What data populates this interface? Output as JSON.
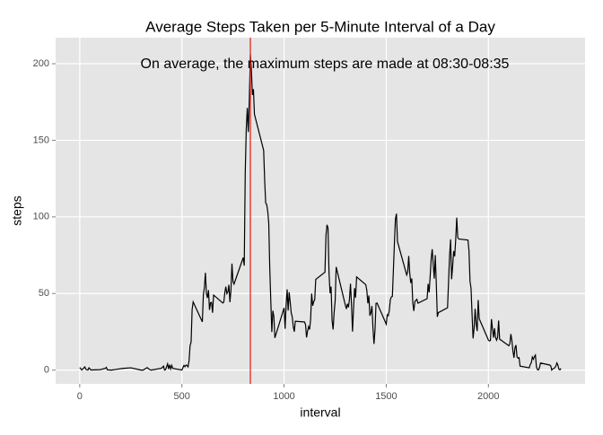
{
  "chart_data": {
    "type": "line",
    "title": "Average Steps Taken per 5-Minute Interval of a Day",
    "annotation": "On average, the maximum steps are made at 08:30-08:35",
    "x_label": "interval",
    "y_label": "steps",
    "color": "#000000",
    "vline": {
      "x": 835,
      "color": "#e8261e"
    },
    "xlim": [
      -118,
      2473
    ],
    "ylim": [
      -9,
      217
    ],
    "xticks": [
      0,
      500,
      1000,
      1500,
      2000
    ],
    "yticks": [
      0,
      50,
      100,
      150,
      200
    ],
    "grid": true,
    "x": [
      0,
      10,
      25,
      30,
      40,
      45,
      55,
      100,
      125,
      130,
      135,
      155,
      210,
      250,
      300,
      310,
      330,
      340,
      350,
      400,
      410,
      415,
      420,
      430,
      435,
      440,
      445,
      450,
      455,
      500,
      505,
      510,
      515,
      520,
      525,
      530,
      535,
      540,
      545,
      550,
      555,
      600,
      605,
      610,
      615,
      620,
      625,
      630,
      635,
      640,
      645,
      650,
      655,
      700,
      705,
      710,
      715,
      720,
      725,
      730,
      735,
      740,
      745,
      750,
      755,
      800,
      805,
      810,
      815,
      820,
      825,
      830,
      835,
      840,
      845,
      850,
      855,
      900,
      905,
      910,
      915,
      920,
      925,
      930,
      935,
      940,
      945,
      950,
      955,
      1000,
      1005,
      1010,
      1015,
      1020,
      1025,
      1030,
      1035,
      1040,
      1045,
      1050,
      1055,
      1100,
      1105,
      1110,
      1115,
      1120,
      1125,
      1130,
      1135,
      1140,
      1145,
      1150,
      1155,
      1200,
      1205,
      1210,
      1215,
      1220,
      1225,
      1230,
      1235,
      1240,
      1245,
      1250,
      1255,
      1300,
      1305,
      1310,
      1315,
      1320,
      1325,
      1330,
      1335,
      1340,
      1345,
      1350,
      1355,
      1400,
      1405,
      1410,
      1415,
      1420,
      1425,
      1430,
      1435,
      1440,
      1445,
      1450,
      1455,
      1500,
      1505,
      1510,
      1515,
      1520,
      1525,
      1530,
      1535,
      1540,
      1545,
      1550,
      1555,
      1600,
      1605,
      1610,
      1615,
      1620,
      1625,
      1630,
      1635,
      1640,
      1645,
      1650,
      1655,
      1700,
      1705,
      1710,
      1715,
      1720,
      1725,
      1730,
      1735,
      1740,
      1745,
      1750,
      1755,
      1800,
      1805,
      1810,
      1815,
      1820,
      1825,
      1830,
      1835,
      1840,
      1845,
      1850,
      1855,
      1900,
      1905,
      1910,
      1915,
      1920,
      1925,
      1930,
      1935,
      1940,
      1945,
      1950,
      1955,
      2000,
      2005,
      2010,
      2015,
      2020,
      2025,
      2030,
      2035,
      2040,
      2045,
      2050,
      2055,
      2100,
      2105,
      2110,
      2115,
      2120,
      2125,
      2130,
      2135,
      2140,
      2145,
      2150,
      2155,
      2200,
      2205,
      2210,
      2215,
      2220,
      2225,
      2230,
      2235,
      2240,
      2245,
      2250,
      2255,
      2300,
      2305,
      2310,
      2315,
      2320,
      2325,
      2330,
      2335,
      2340,
      2345,
      2350,
      2355
    ],
    "values": [
      1.7,
      0.1,
      2.1,
      0.5,
      0,
      1.5,
      0.1,
      0.3,
      1.1,
      1.8,
      0.2,
      0,
      1.1,
      1.5,
      0,
      0,
      1.6,
      0.5,
      0,
      1.2,
      2.6,
      0,
      0.3,
      4.1,
      0.7,
      3.5,
      0.8,
      3.1,
      1.1,
      0,
      1.6,
      3,
      2.2,
      3.3,
      3,
      2.1,
      6.1,
      16,
      18.3,
      39.5,
      44.5,
      31.5,
      49.3,
      53.8,
      63.5,
      50,
      47.1,
      52.2,
      39.3,
      44,
      44.2,
      37.4,
      49,
      43.8,
      44.4,
      50.5,
      54.5,
      49.9,
      51,
      55.7,
      44.3,
      52.3,
      69.5,
      57.8,
      56.2,
      73.4,
      68.2,
      129.4,
      157.5,
      171.2,
      155.4,
      177.3,
      206.2,
      195.9,
      179.6,
      183.4,
      167,
      143.5,
      124,
      109.1,
      108.1,
      103.7,
      95.97,
      66.2,
      45.2,
      24.8,
      38.8,
      34.98,
      21.06,
      40.6,
      26.98,
      42.4,
      52.7,
      38.9,
      50.8,
      44.3,
      37.4,
      34.7,
      28.3,
      25.1,
      31.9,
      31.4,
      29.7,
      21.3,
      25.5,
      28.4,
      26.5,
      33.4,
      49.98,
      42,
      44.6,
      46,
      59.2,
      63.9,
      87.7,
      94.8,
      92.8,
      63.4,
      50.2,
      54.5,
      32.4,
      26.5,
      37.7,
      45.1,
      67.3,
      42.3,
      39.9,
      43.3,
      40.98,
      46.2,
      56.4,
      42.8,
      25.1,
      39.97,
      53.5,
      47.3,
      60.8,
      55.75,
      51.96,
      43.6,
      48.7,
      35.5,
      37.5,
      41.8,
      27.5,
      17.1,
      26.1,
      43.6,
      43.8,
      30,
      36.1,
      35.5,
      38.8,
      45.96,
      47.75,
      48.1,
      65.3,
      82.9,
      98.7,
      102.1,
      83.96,
      62.1,
      64.1,
      74.5,
      63.2,
      56.9,
      59.8,
      43.9,
      38.6,
      44.7,
      45.5,
      46.2,
      43.7,
      46.6,
      56.3,
      50.7,
      61.2,
      72.7,
      78.9,
      68.9,
      59.7,
      75.1,
      56.5,
      34.8,
      37.5,
      40.7,
      58,
      74.7,
      85.3,
      59.3,
      67.8,
      77.7,
      74.2,
      85.3,
      99.5,
      86.6,
      85.6,
      84.9,
      77.8,
      58,
      53.4,
      36.3,
      20.7,
      27.4,
      40,
      30.2,
      25.5,
      45.7,
      33.5,
      19.6,
      19,
      19.3,
      33.3,
      26.8,
      21.2,
      27.3,
      21.3,
      19.5,
      21.3,
      32.3,
      20.2,
      15.9,
      17.2,
      23.5,
      19.2,
      12.5,
      8,
      14.7,
      16.3,
      8.7,
      7.8,
      8.1,
      2.6,
      1.5,
      3.7,
      4.8,
      8.5,
      7.1,
      8.7,
      9.8,
      2.2,
      0.3,
      0.1,
      1.6,
      4.6,
      3.3,
      2.8,
      0,
      0.8,
      0.96,
      1.6,
      2.6,
      4.7,
      3.3,
      0.6,
      0.2,
      1.1
    ]
  }
}
